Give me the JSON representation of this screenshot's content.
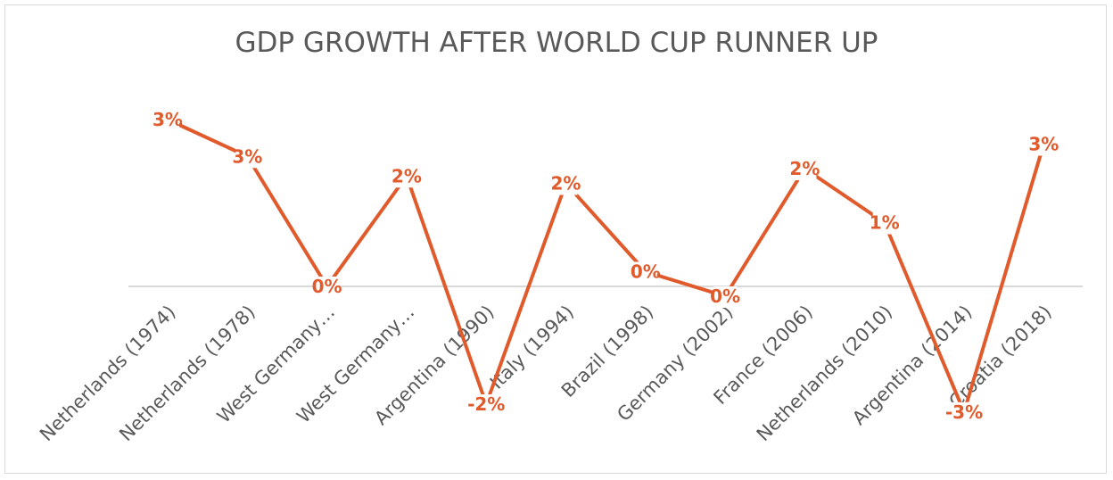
{
  "chart_data": {
    "type": "line",
    "title": "GDP GROWTH AFTER WORLD CUP RUNNER UP",
    "xlabel": "",
    "ylabel": "",
    "categories": [
      "Netherlands (1974)",
      "Netherlands (1978)",
      "West Germany…",
      "West Germany…",
      "Argentina (1990)",
      "Italy (1994)",
      "Brazil (1998)",
      "Germany (2002)",
      "France (2006)",
      "Netherlands (2010)",
      "Argentina (2014)",
      "Croatia (2018)"
    ],
    "series": [
      {
        "name": "GDP growth",
        "color": "#e05a2b",
        "values": [
          3.4,
          2.65,
          0.0,
          2.25,
          -2.4,
          2.1,
          0.3,
          -0.2,
          2.4,
          1.3,
          -2.56,
          2.9
        ],
        "labels": [
          "3%",
          "3%",
          "0%",
          "2%",
          "-2%",
          "2%",
          "0%",
          "0%",
          "2%",
          "1%",
          "-3%",
          "3%"
        ]
      }
    ],
    "ylim": [
      -4,
      4
    ],
    "grid": false,
    "legend": "none"
  }
}
